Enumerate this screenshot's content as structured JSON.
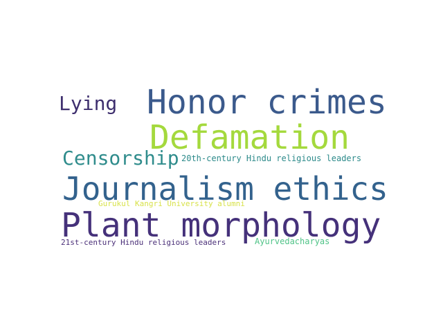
{
  "word_cloud": {
    "words": [
      {
        "text": "Honor crimes",
        "color": "#3b5a8c"
      },
      {
        "text": "Lying",
        "color": "#3e2f6e"
      },
      {
        "text": "Defamation",
        "color": "#a4d93d"
      },
      {
        "text": "Censorship",
        "color": "#2f8c8c"
      },
      {
        "text": "20th-century Hindu religious leaders",
        "color": "#2c8a8a"
      },
      {
        "text": "Journalism ethics",
        "color": "#33628d"
      },
      {
        "text": "Gurukul Kangri University alumni",
        "color": "#d8e24a"
      },
      {
        "text": "Plant morphology",
        "color": "#45317a"
      },
      {
        "text": "21st-century Hindu religious leaders",
        "color": "#4a2f78"
      },
      {
        "text": "Ayurvedacharyas",
        "color": "#4fc387"
      }
    ]
  }
}
